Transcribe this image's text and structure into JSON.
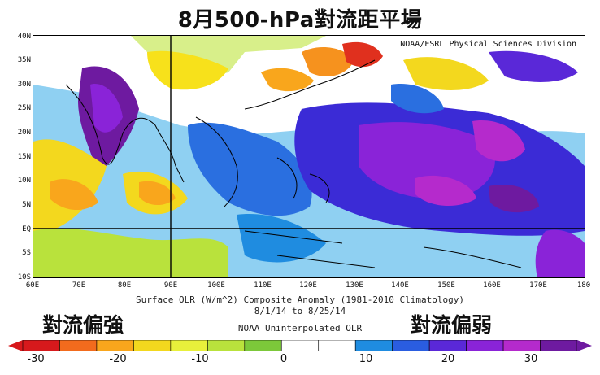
{
  "title": "8月500-hPa對流距平場",
  "credit": "NOAA/ESRL Physical Sciences Division",
  "lat_labels": [
    "40N",
    "35N",
    "30N",
    "25N",
    "20N",
    "15N",
    "10N",
    "5N",
    "EQ",
    "5S",
    "10S"
  ],
  "lon_labels": [
    "60E",
    "70E",
    "80E",
    "90E",
    "100E",
    "110E",
    "120E",
    "130E",
    "140E",
    "150E",
    "160E",
    "170E",
    "180"
  ],
  "caption_lines": [
    "Surface OLR (W/m^2) Composite Anomaly (1981-2010 Climatology)",
    "8/1/14 to 8/25/14",
    "NOAA Uninterpolated OLR"
  ],
  "left_note": "對流偏強",
  "right_note": "對流偏弱",
  "colorbar": {
    "ticks": [
      "-30",
      "-20",
      "-10",
      "0",
      "10",
      "20",
      "30"
    ],
    "colors": [
      "#d7191c",
      "#f26b1d",
      "#f9a61c",
      "#f3d81e",
      "#e8f03b",
      "#b9e23c",
      "#7cc83a",
      "#ffffff",
      "#ffffff",
      "#1f8ce0",
      "#2a5de0",
      "#5a28d8",
      "#8a23d8",
      "#b52acc",
      "#6e1aa0"
    ]
  },
  "palette": {
    "red": "#d7191c",
    "orange": "#f6921e",
    "yellow": "#f7e11b",
    "lime": "#b9e23c",
    "green": "#6cc43a",
    "white": "#ffffff",
    "lightblue": "#8fd0f2",
    "blue": "#2a6fe0",
    "indigo": "#3b2bd6",
    "violet": "#8a23d8",
    "magenta": "#b52acc"
  }
}
